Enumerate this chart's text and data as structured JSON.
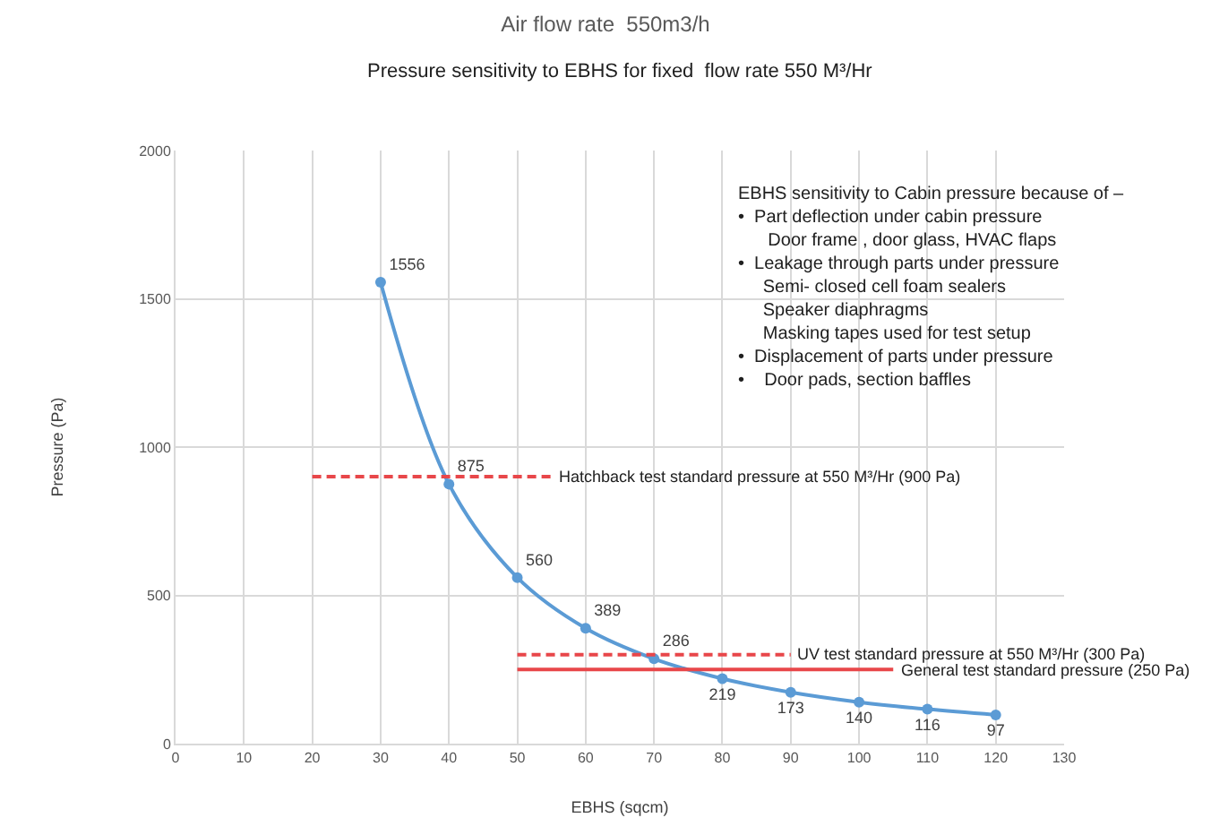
{
  "chart_data": {
    "type": "line",
    "title": "Air flow rate  550m3/h",
    "subtitle": "Pressure sensitivity to EBHS for fixed  flow rate 550 M³/Hr",
    "xlabel": "EBHS (sqcm)",
    "ylabel": "Pressure (Pa)",
    "x": [
      30,
      40,
      50,
      60,
      70,
      80,
      90,
      100,
      110,
      120
    ],
    "series": [
      {
        "color": "#5b9bd5",
        "marker": "circle",
        "line_style": "solid",
        "values": [
          1556,
          875,
          560,
          389,
          286,
          219,
          173,
          140,
          116,
          97
        ],
        "value_labels": [
          "1556",
          "875",
          "560",
          "389",
          "286",
          "219",
          "173",
          "140",
          "116",
          "97"
        ]
      },
      {
        "name": "Hatchback test standard pressure at 550 M³/Hr (900 Pa)",
        "color": "#e8474a",
        "marker": "none",
        "line_style": "dashed",
        "x": [
          20,
          55
        ],
        "values": [
          900,
          900
        ]
      },
      {
        "name": "UV test standard pressure at 550 M³/Hr (300 Pa)",
        "color": "#e8474a",
        "marker": "none",
        "line_style": "dashed",
        "x": [
          50,
          90
        ],
        "values": [
          300,
          300
        ]
      },
      {
        "name": "General test standard pressure (250 Pa)",
        "color": "#e8474a",
        "marker": "none",
        "line_style": "solid",
        "x": [
          50,
          105
        ],
        "values": [
          250,
          250
        ]
      }
    ],
    "annotations": [
      "EBHS sensitivity to Cabin pressure because of –\n•  Part deflection under cabin pressure\n      Door frame , door glass, HVAC flaps\n•  Leakage through parts under pressure\n     Semi- closed cell foam sealers\n     Speaker diaphragms\n     Masking tapes used for test setup\n•  Displacement of parts under pressure\n•    Door pads, section baffles"
    ],
    "xlim": [
      0,
      130
    ],
    "xticks": [
      0,
      10,
      20,
      30,
      40,
      50,
      60,
      70,
      80,
      90,
      100,
      110,
      120,
      130
    ],
    "ylim": [
      0,
      2000
    ],
    "yticks": [
      0,
      500,
      1000,
      1500,
      2000
    ],
    "grid": true,
    "legend": false
  }
}
